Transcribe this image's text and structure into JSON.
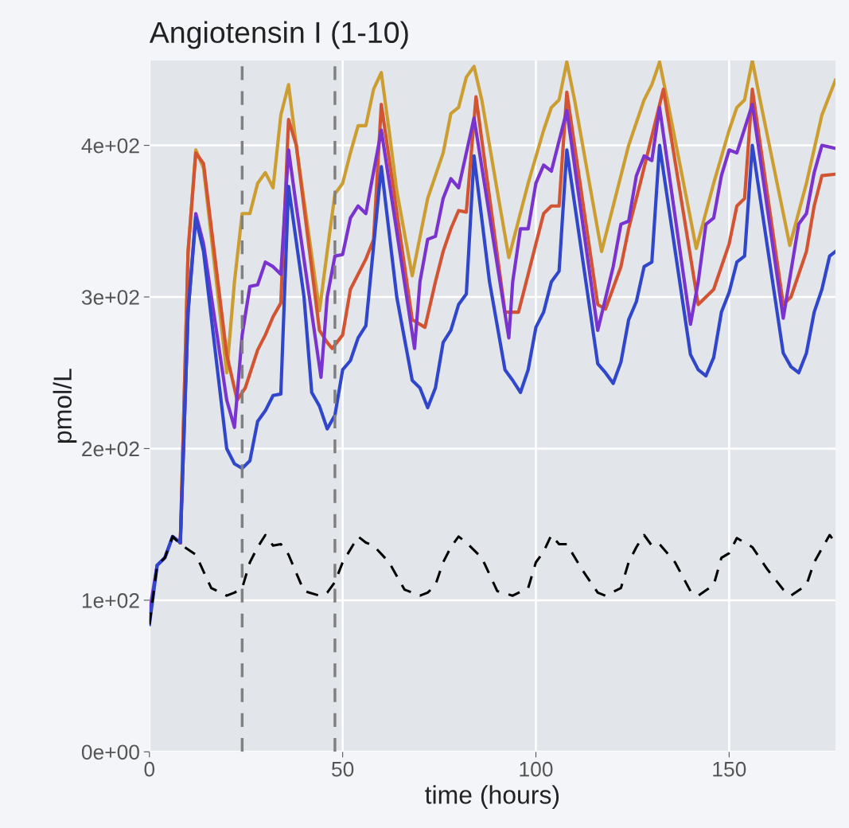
{
  "chart_data": {
    "type": "line",
    "title": "Angiotensin I (1-10)",
    "xlabel": "time (hours)",
    "ylabel": "pmol/L",
    "xlim": [
      0,
      177.5
    ],
    "xticks": [
      0,
      50,
      100,
      150
    ],
    "ylim": [
      0,
      456
    ],
    "yticks": [
      {
        "value": 0,
        "label": "0e+00"
      },
      {
        "value": 100,
        "label": "1e+02"
      },
      {
        "value": 200,
        "label": "2e+02"
      },
      {
        "value": 300,
        "label": "3e+02"
      },
      {
        "value": 400,
        "label": "4e+02"
      }
    ],
    "grid": true,
    "legend": false,
    "ref_lines": [
      {
        "axis": "x",
        "value": 24,
        "color": "#808080",
        "line_style": "dashed"
      },
      {
        "axis": "x",
        "value": 48,
        "color": "#808080",
        "line_style": "dashed"
      }
    ],
    "series": [
      {
        "color": "#cc9e32",
        "line_style": "solid",
        "x": [
          8,
          10,
          12,
          14,
          20,
          22,
          24,
          26,
          28,
          30,
          32,
          34,
          36,
          38,
          44,
          46,
          48,
          50,
          52,
          54,
          56,
          58,
          60,
          62,
          64,
          68,
          72,
          76,
          78,
          80,
          82,
          84,
          86,
          90,
          93,
          98,
          102,
          104,
          106,
          108,
          110,
          117,
          120,
          124,
          126,
          128,
          130,
          132,
          134,
          141.5,
          146,
          150,
          152,
          154,
          156,
          158,
          165.7,
          170,
          174,
          177.5
        ],
        "values": [
          138,
          330,
          397,
          385,
          250,
          310,
          355,
          355,
          375,
          382,
          372,
          420,
          440,
          400,
          291,
          330,
          368,
          375,
          395,
          413,
          413,
          437,
          448,
          410,
          370,
          314,
          365,
          395,
          421,
          425,
          445,
          452,
          430,
          370,
          326,
          375,
          410,
          425,
          430,
          455,
          430,
          330,
          360,
          400,
          415,
          430,
          440,
          455,
          430,
          332,
          375,
          410,
          425,
          430,
          456,
          430,
          334,
          375,
          420,
          443
        ]
      },
      {
        "color": "#d25433",
        "line_style": "solid",
        "x": [
          8,
          10,
          12,
          14,
          20,
          22.7,
          24.8,
          28,
          30,
          32,
          34,
          36,
          38,
          44,
          46,
          47.3,
          50,
          52,
          56,
          58,
          60,
          68,
          71.3,
          74,
          76,
          78,
          80,
          82,
          84.5,
          92,
          95.5,
          98,
          100,
          102,
          104,
          106,
          108,
          116,
          118,
          122,
          124,
          127,
          133,
          142,
          146,
          150,
          152,
          154,
          156,
          164,
          166,
          170,
          172,
          174,
          177.5
        ],
        "values": [
          138,
          330,
          395,
          388,
          262,
          232,
          240,
          265,
          275,
          287,
          296,
          417,
          400,
          278,
          270,
          266,
          275,
          305,
          325,
          338,
          427,
          285,
          280,
          310,
          330,
          345,
          357,
          356,
          432,
          290,
          290,
          315,
          335,
          355,
          360,
          360,
          435,
          295,
          292,
          320,
          345,
          375,
          437,
          295,
          305,
          335,
          360,
          365,
          437,
          295,
          300,
          330,
          360,
          380,
          381
        ]
      },
      {
        "color": "#7a33cf",
        "line_style": "solid",
        "x": [
          0,
          2,
          4,
          6,
          8,
          10,
          12,
          14,
          20,
          22,
          24,
          26,
          28,
          30,
          32,
          34,
          36,
          38,
          44.4,
          46,
          48,
          50,
          52,
          54,
          56,
          60,
          68.6,
          70,
          72,
          74,
          76,
          78,
          80,
          84,
          93,
          94,
          96,
          98,
          100,
          102,
          104,
          108,
          116,
          120,
          122,
          124,
          126,
          128,
          130,
          132,
          140,
          142,
          144,
          146,
          148,
          150,
          152,
          156,
          164,
          168,
          170,
          172,
          174,
          177.5
        ],
        "values": [
          92,
          123,
          128,
          142,
          138,
          290,
          355,
          335,
          232,
          214,
          275,
          307,
          308,
          323,
          320,
          315,
          397,
          360,
          247,
          300,
          327,
          328,
          352,
          360,
          355,
          410,
          266,
          310,
          338,
          340,
          365,
          378,
          372,
          418,
          273,
          310,
          345,
          345,
          375,
          387,
          383,
          423,
          278,
          320,
          348,
          350,
          380,
          393,
          390,
          425,
          282,
          310,
          348,
          352,
          380,
          397,
          395,
          427,
          286,
          348,
          355,
          382,
          400,
          398
        ]
      },
      {
        "color": "#3047cc",
        "line_style": "solid",
        "x": [
          0,
          2,
          4,
          6,
          8,
          10,
          12,
          14,
          20,
          22,
          24,
          26,
          28,
          30,
          32,
          34,
          36,
          40,
          42,
          44,
          46,
          48,
          50,
          52,
          54,
          56,
          60,
          64,
          68,
          70,
          72,
          74,
          76,
          78,
          80,
          82,
          84,
          88,
          92,
          94,
          96,
          98,
          100,
          102,
          104,
          106,
          108,
          116,
          118,
          120,
          122,
          124,
          126,
          128,
          130,
          132,
          140,
          142,
          144,
          146,
          148,
          150,
          152,
          154,
          156,
          164,
          166,
          168,
          170,
          172,
          174,
          176,
          177.5
        ],
        "values": [
          84,
          123,
          128,
          142,
          138,
          290,
          352,
          330,
          200,
          190,
          187,
          192,
          218,
          225,
          235,
          236,
          373,
          300,
          237,
          228,
          213,
          222,
          252,
          258,
          273,
          281,
          386,
          300,
          245,
          240,
          227,
          240,
          270,
          278,
          295,
          302,
          393,
          310,
          252,
          245,
          237,
          252,
          280,
          290,
          310,
          317,
          397,
          256,
          250,
          243,
          257,
          285,
          297,
          320,
          323,
          400,
          262,
          252,
          248,
          260,
          290,
          303,
          323,
          327,
          400,
          263,
          254,
          250,
          263,
          290,
          305,
          327,
          330
        ]
      },
      {
        "color": "#000000",
        "line_style": "dashed",
        "x": [
          0,
          2,
          4,
          6,
          8,
          12,
          16,
          20,
          22,
          24,
          26,
          28,
          30,
          32,
          34,
          36,
          40,
          44,
          46,
          48,
          50,
          54,
          56,
          58,
          62,
          66,
          70,
          72,
          74,
          76,
          78,
          80,
          82,
          86,
          90,
          94,
          98,
          100,
          102,
          104,
          106,
          108,
          112,
          116,
          118,
          122,
          124,
          126,
          128,
          130,
          132,
          136,
          140,
          142,
          146,
          148,
          150,
          152,
          156,
          160,
          164,
          166,
          170,
          172,
          176,
          177.5
        ],
        "values": [
          84,
          123,
          128,
          142,
          137,
          130,
          108,
          103,
          105,
          108,
          125,
          135,
          143,
          136,
          137,
          130,
          106,
          103,
          105,
          112,
          125,
          142,
          138,
          136,
          125,
          107,
          103,
          105,
          110,
          125,
          135,
          142,
          138,
          128,
          106,
          103,
          108,
          125,
          132,
          143,
          137,
          137,
          120,
          105,
          103,
          108,
          125,
          135,
          143,
          136,
          137,
          125,
          106,
          103,
          110,
          128,
          131,
          141,
          135,
          120,
          107,
          103,
          110,
          125,
          143,
          138
        ]
      }
    ]
  }
}
